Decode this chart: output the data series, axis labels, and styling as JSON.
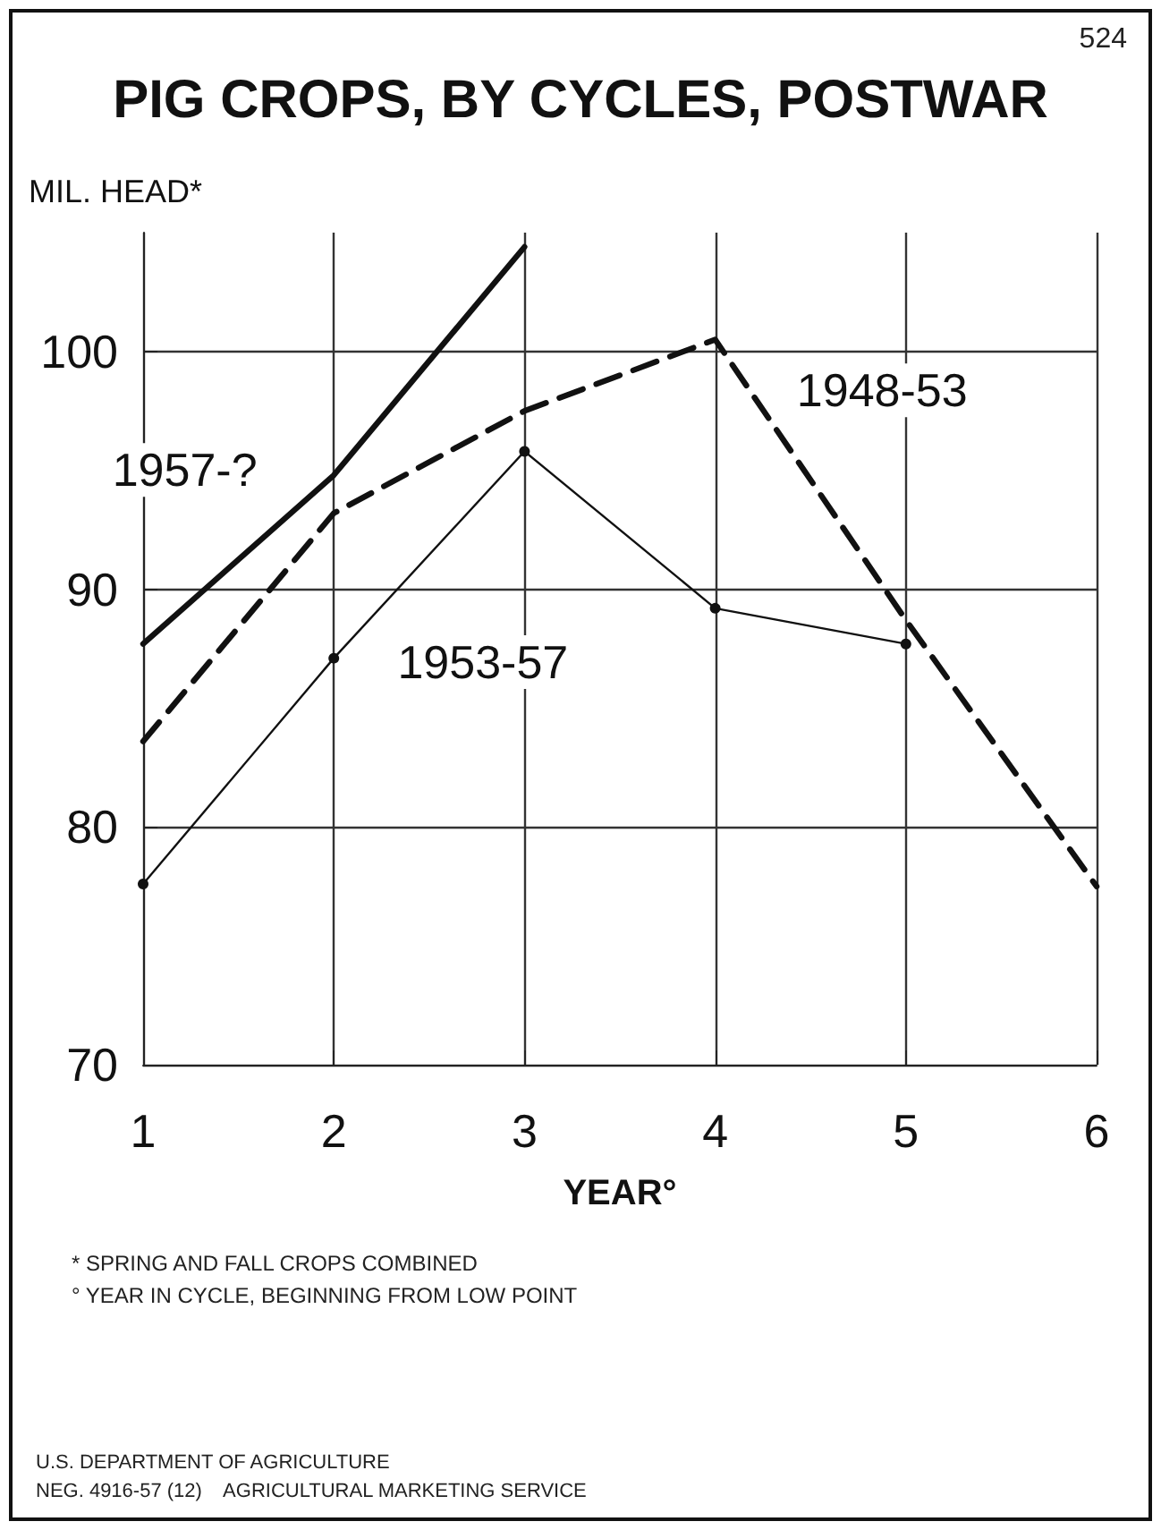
{
  "chart_data": {
    "type": "line",
    "title": "PIG CROPS, BY CYCLES, POSTWAR",
    "xlabel": "YEAR°",
    "ylabel": "MIL. HEAD*",
    "series": [
      {
        "name": "1957-?",
        "color": "#111111",
        "x": [
          1,
          2,
          3
        ],
        "values": [
          87.7,
          94.8,
          104.4
        ],
        "line_style": "solid",
        "marker": "none"
      },
      {
        "name": "1948-53",
        "color": "#111111",
        "x": [
          1,
          2,
          3,
          4,
          5,
          6
        ],
        "values": [
          83.6,
          93.2,
          97.5,
          100.5,
          88.7,
          77.5
        ],
        "line_style": "dashed",
        "marker": "none"
      },
      {
        "name": "1953-57",
        "color": "#111111",
        "x": [
          1,
          2,
          3,
          4,
          5
        ],
        "values": [
          77.6,
          87.1,
          95.8,
          89.2,
          87.7
        ],
        "line_style": "solid",
        "marker": "circle"
      }
    ],
    "xlim": [
      1,
      6
    ],
    "xticks": [
      1,
      2,
      3,
      4,
      5,
      6
    ],
    "ylim": [
      70,
      105
    ],
    "yticks": [
      70,
      80,
      90,
      100
    ],
    "grid": true,
    "legend": false,
    "annotations": [
      "524",
      "* SPRING AND FALL CROPS COMBINED",
      "° YEAR IN CYCLE, BEGINNING FROM LOW POINT",
      "U.S. DEPARTMENT OF AGRICULTURE",
      "NEG. 4916-57 (12)    AGRICULTURAL MARKETING SERVICE"
    ]
  }
}
